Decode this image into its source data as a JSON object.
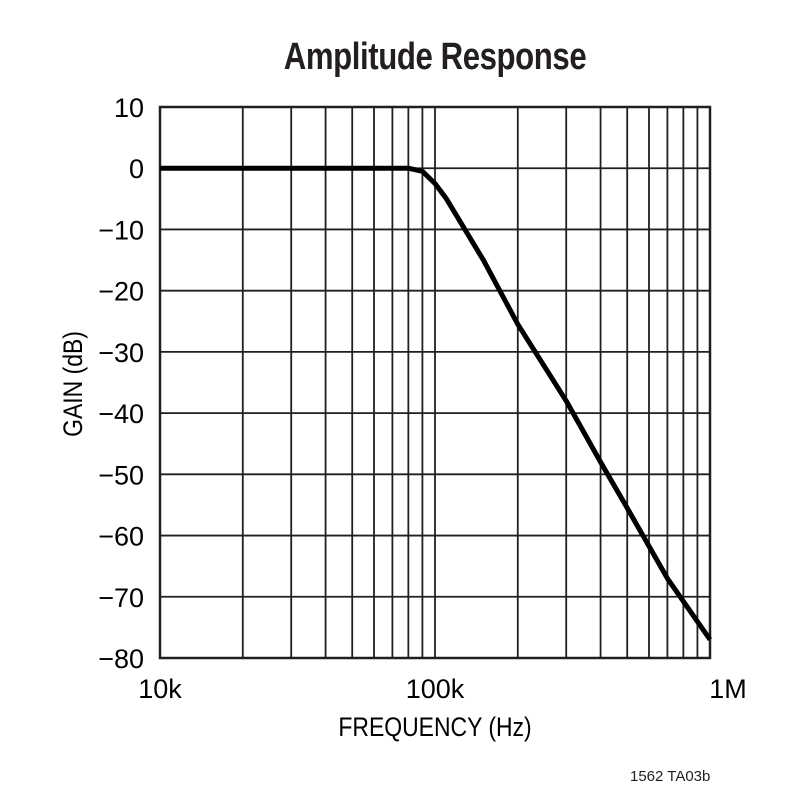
{
  "chart_data": {
    "type": "line",
    "title": "Amplitude Response",
    "xlabel": "FREQUENCY (Hz)",
    "ylabel": "GAIN (dB)",
    "xscale": "log",
    "xlim": [
      10000,
      1000000
    ],
    "ylim": [
      -80,
      10
    ],
    "x_tick_labels": [
      "10k",
      "100k",
      "1M"
    ],
    "x_tick_values": [
      10000,
      100000,
      1000000
    ],
    "y_tick_labels": [
      "10",
      "0",
      "−10",
      "−20",
      "−30",
      "−40",
      "−50",
      "−60",
      "−70",
      "−80"
    ],
    "y_tick_values": [
      10,
      0,
      -10,
      -20,
      -30,
      -40,
      -50,
      -60,
      -70,
      -80
    ],
    "grid": true,
    "legend": null,
    "series": [
      {
        "name": "Gain",
        "color": "#000000",
        "x": [
          10000,
          20000,
          50000,
          70000,
          80000,
          90000,
          100000,
          110000,
          150000,
          200000,
          300000,
          400000,
          500000,
          700000,
          1000000
        ],
        "y": [
          0,
          0,
          0,
          0,
          0,
          -0.5,
          -2.5,
          -5,
          -15,
          -25.5,
          -38,
          -48,
          -55.5,
          -67,
          -77
        ]
      }
    ],
    "annotation": "1562 TA03b"
  },
  "footnote": "1562 TA03b"
}
